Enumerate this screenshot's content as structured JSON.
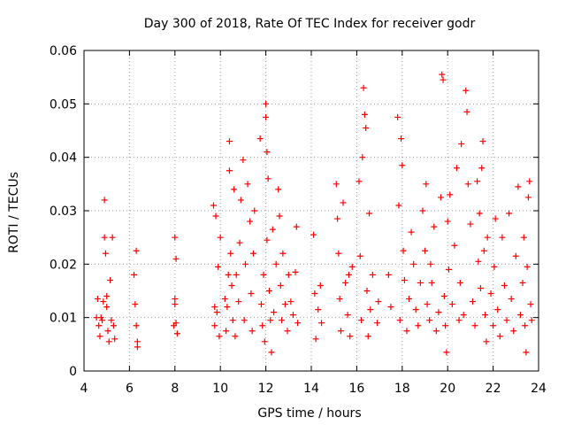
{
  "chart_data": {
    "type": "scatter",
    "title": "Day 300 of 2018, Rate Of TEC Index for receiver godr",
    "xlabel": "GPS time / hours",
    "ylabel": "ROTI / TECUs",
    "xlim": [
      4,
      24
    ],
    "ylim": [
      0,
      0.06
    ],
    "x_ticks": [
      "4",
      "6",
      "8",
      "10",
      "12",
      "14",
      "16",
      "18",
      "20",
      "22",
      "24"
    ],
    "y_ticks": [
      "0",
      "0.01",
      "0.02",
      "0.03",
      "0.04",
      "0.05",
      "0.06"
    ],
    "grid": true,
    "marker": "+",
    "color": "#ff0000",
    "series": [
      {
        "name": "ROTI",
        "points": [
          [
            4.55,
            0.01
          ],
          [
            4.6,
            0.0135
          ],
          [
            4.65,
            0.0085
          ],
          [
            4.7,
            0.0065
          ],
          [
            4.75,
            0.01
          ],
          [
            4.8,
            0.0095
          ],
          [
            4.85,
            0.013
          ],
          [
            4.9,
            0.032
          ],
          [
            4.9,
            0.025
          ],
          [
            4.95,
            0.022
          ],
          [
            5.0,
            0.014
          ],
          [
            5.0,
            0.012
          ],
          [
            5.05,
            0.0075
          ],
          [
            5.1,
            0.0055
          ],
          [
            5.15,
            0.017
          ],
          [
            5.2,
            0.0095
          ],
          [
            5.25,
            0.025
          ],
          [
            5.3,
            0.0085
          ],
          [
            5.35,
            0.006
          ],
          [
            6.2,
            0.018
          ],
          [
            6.25,
            0.0125
          ],
          [
            6.3,
            0.0225
          ],
          [
            6.3,
            0.0085
          ],
          [
            6.35,
            0.0045
          ],
          [
            6.35,
            0.0055
          ],
          [
            7.95,
            0.0085
          ],
          [
            8.0,
            0.0135
          ],
          [
            8.0,
            0.0125
          ],
          [
            8.0,
            0.025
          ],
          [
            8.05,
            0.021
          ],
          [
            8.05,
            0.009
          ],
          [
            8.1,
            0.007
          ],
          [
            9.7,
            0.031
          ],
          [
            9.75,
            0.012
          ],
          [
            9.75,
            0.0085
          ],
          [
            9.8,
            0.029
          ],
          [
            9.85,
            0.011
          ],
          [
            9.9,
            0.0195
          ],
          [
            9.95,
            0.0065
          ],
          [
            10.0,
            0.025
          ],
          [
            10.2,
            0.0135
          ],
          [
            10.25,
            0.0075
          ],
          [
            10.3,
            0.012
          ],
          [
            10.35,
            0.018
          ],
          [
            10.4,
            0.043
          ],
          [
            10.4,
            0.0375
          ],
          [
            10.45,
            0.022
          ],
          [
            10.5,
            0.016
          ],
          [
            10.55,
            0.0095
          ],
          [
            10.6,
            0.034
          ],
          [
            10.65,
            0.0065
          ],
          [
            10.7,
            0.018
          ],
          [
            10.8,
            0.013
          ],
          [
            10.85,
            0.024
          ],
          [
            10.9,
            0.032
          ],
          [
            11.0,
            0.0395
          ],
          [
            11.05,
            0.0095
          ],
          [
            11.1,
            0.02
          ],
          [
            11.2,
            0.035
          ],
          [
            11.3,
            0.028
          ],
          [
            11.35,
            0.0145
          ],
          [
            11.4,
            0.0075
          ],
          [
            11.45,
            0.022
          ],
          [
            11.5,
            0.03
          ],
          [
            11.75,
            0.0435
          ],
          [
            11.8,
            0.0125
          ],
          [
            11.85,
            0.0085
          ],
          [
            11.9,
            0.018
          ],
          [
            11.95,
            0.0055
          ],
          [
            12.0,
            0.05
          ],
          [
            12.0,
            0.0475
          ],
          [
            12.05,
            0.041
          ],
          [
            12.05,
            0.0245
          ],
          [
            12.1,
            0.036
          ],
          [
            12.15,
            0.015
          ],
          [
            12.2,
            0.0095
          ],
          [
            12.25,
            0.0035
          ],
          [
            12.3,
            0.0265
          ],
          [
            12.35,
            0.011
          ],
          [
            12.45,
            0.02
          ],
          [
            12.55,
            0.034
          ],
          [
            12.6,
            0.029
          ],
          [
            12.65,
            0.016
          ],
          [
            12.7,
            0.0095
          ],
          [
            12.75,
            0.022
          ],
          [
            12.85,
            0.0125
          ],
          [
            12.95,
            0.0075
          ],
          [
            13.0,
            0.018
          ],
          [
            13.1,
            0.013
          ],
          [
            13.2,
            0.0105
          ],
          [
            13.3,
            0.0185
          ],
          [
            13.35,
            0.027
          ],
          [
            13.4,
            0.009
          ],
          [
            14.1,
            0.0255
          ],
          [
            14.15,
            0.0145
          ],
          [
            14.2,
            0.006
          ],
          [
            14.3,
            0.0115
          ],
          [
            14.4,
            0.016
          ],
          [
            14.45,
            0.009
          ],
          [
            15.1,
            0.035
          ],
          [
            15.15,
            0.0285
          ],
          [
            15.2,
            0.022
          ],
          [
            15.25,
            0.0135
          ],
          [
            15.3,
            0.0075
          ],
          [
            15.4,
            0.0315
          ],
          [
            15.5,
            0.0165
          ],
          [
            15.6,
            0.0105
          ],
          [
            15.65,
            0.018
          ],
          [
            15.7,
            0.0065
          ],
          [
            15.8,
            0.0195
          ],
          [
            16.1,
            0.0355
          ],
          [
            16.15,
            0.0215
          ],
          [
            16.2,
            0.0095
          ],
          [
            16.25,
            0.04
          ],
          [
            16.3,
            0.053
          ],
          [
            16.35,
            0.048
          ],
          [
            16.4,
            0.0455
          ],
          [
            16.45,
            0.015
          ],
          [
            16.5,
            0.0065
          ],
          [
            16.55,
            0.0295
          ],
          [
            16.6,
            0.0115
          ],
          [
            16.7,
            0.018
          ],
          [
            16.9,
            0.009
          ],
          [
            16.95,
            0.013
          ],
          [
            17.4,
            0.018
          ],
          [
            17.5,
            0.012
          ],
          [
            17.8,
            0.0475
          ],
          [
            17.85,
            0.031
          ],
          [
            17.9,
            0.0095
          ],
          [
            17.95,
            0.0435
          ],
          [
            18.0,
            0.0385
          ],
          [
            18.05,
            0.0225
          ],
          [
            18.1,
            0.017
          ],
          [
            18.2,
            0.0075
          ],
          [
            18.3,
            0.0135
          ],
          [
            18.4,
            0.026
          ],
          [
            18.5,
            0.02
          ],
          [
            18.6,
            0.0115
          ],
          [
            18.7,
            0.0085
          ],
          [
            18.8,
            0.0165
          ],
          [
            18.9,
            0.03
          ],
          [
            19.0,
            0.0225
          ],
          [
            19.05,
            0.035
          ],
          [
            19.1,
            0.0125
          ],
          [
            19.2,
            0.0095
          ],
          [
            19.25,
            0.02
          ],
          [
            19.3,
            0.0165
          ],
          [
            19.4,
            0.027
          ],
          [
            19.5,
            0.0075
          ],
          [
            19.6,
            0.011
          ],
          [
            19.7,
            0.0325
          ],
          [
            19.75,
            0.0555
          ],
          [
            19.8,
            0.0545
          ],
          [
            19.85,
            0.014
          ],
          [
            19.9,
            0.0085
          ],
          [
            19.95,
            0.0035
          ],
          [
            20.0,
            0.028
          ],
          [
            20.05,
            0.019
          ],
          [
            20.1,
            0.033
          ],
          [
            20.2,
            0.0125
          ],
          [
            20.3,
            0.0235
          ],
          [
            20.4,
            0.038
          ],
          [
            20.5,
            0.0095
          ],
          [
            20.55,
            0.0165
          ],
          [
            20.6,
            0.0425
          ],
          [
            20.7,
            0.0105
          ],
          [
            20.8,
            0.0525
          ],
          [
            20.85,
            0.0485
          ],
          [
            20.9,
            0.035
          ],
          [
            21.0,
            0.0275
          ],
          [
            21.1,
            0.013
          ],
          [
            21.2,
            0.0085
          ],
          [
            21.3,
            0.0355
          ],
          [
            21.35,
            0.0205
          ],
          [
            21.4,
            0.0295
          ],
          [
            21.45,
            0.0155
          ],
          [
            21.5,
            0.038
          ],
          [
            21.55,
            0.043
          ],
          [
            21.6,
            0.0225
          ],
          [
            21.65,
            0.0105
          ],
          [
            21.7,
            0.0055
          ],
          [
            21.75,
            0.025
          ],
          [
            21.9,
            0.0145
          ],
          [
            22.0,
            0.0085
          ],
          [
            22.05,
            0.0195
          ],
          [
            22.1,
            0.0285
          ],
          [
            22.2,
            0.0115
          ],
          [
            22.3,
            0.0065
          ],
          [
            22.4,
            0.025
          ],
          [
            22.5,
            0.016
          ],
          [
            22.6,
            0.0095
          ],
          [
            22.7,
            0.0295
          ],
          [
            22.8,
            0.0135
          ],
          [
            22.9,
            0.0075
          ],
          [
            23.0,
            0.0215
          ],
          [
            23.1,
            0.0345
          ],
          [
            23.2,
            0.0105
          ],
          [
            23.3,
            0.0165
          ],
          [
            23.35,
            0.025
          ],
          [
            23.4,
            0.0085
          ],
          [
            23.45,
            0.0035
          ],
          [
            23.5,
            0.0195
          ],
          [
            23.55,
            0.0325
          ],
          [
            23.6,
            0.0355
          ],
          [
            23.65,
            0.0125
          ],
          [
            23.7,
            0.0095
          ]
        ]
      }
    ]
  }
}
